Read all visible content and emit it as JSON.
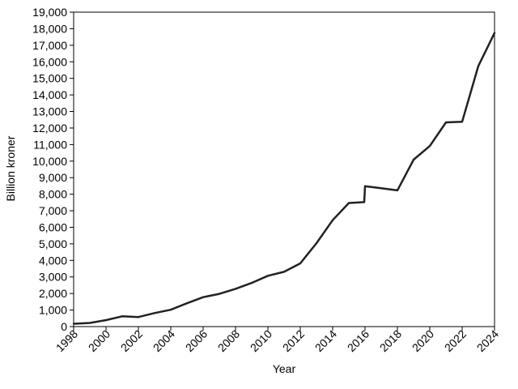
{
  "chart_data": {
    "type": "line",
    "title": "",
    "xlabel": "Year",
    "ylabel": "Billion kroner",
    "xlim": [
      1998,
      2024
    ],
    "ylim": [
      0,
      19000
    ],
    "grid": false,
    "x_ticks": [
      1998,
      2000,
      2002,
      2004,
      2006,
      2008,
      2010,
      2012,
      2014,
      2016,
      2018,
      2020,
      2022,
      2024
    ],
    "x_tick_labels": [
      "1998",
      "2000",
      "2002",
      "2004",
      "2006",
      "2008",
      "2010",
      "2012",
      "2014",
      "2016",
      "2018",
      "2020",
      "2022",
      "2024"
    ],
    "y_ticks": [
      0,
      1000,
      2000,
      3000,
      4000,
      5000,
      6000,
      7000,
      8000,
      9000,
      10000,
      11000,
      12000,
      13000,
      14000,
      15000,
      16000,
      17000,
      18000,
      19000
    ],
    "y_tick_labels": [
      "0",
      "1,000",
      "2,000",
      "3,000",
      "4,000",
      "5,000",
      "6,000",
      "7,000",
      "8,000",
      "9,000",
      "10,000",
      "11,000",
      "12,000",
      "13,000",
      "14,000",
      "15,000",
      "16,000",
      "17,000",
      "18,000",
      "19,000"
    ],
    "series": [
      {
        "color": "#222222",
        "points": [
          [
            1998,
            170
          ],
          [
            1999,
            220
          ],
          [
            2000,
            390
          ],
          [
            2001,
            620
          ],
          [
            2002,
            580
          ],
          [
            2003,
            820
          ],
          [
            2004,
            1020
          ],
          [
            2005,
            1410
          ],
          [
            2006,
            1780
          ],
          [
            2007,
            1980
          ],
          [
            2008,
            2280
          ],
          [
            2009,
            2640
          ],
          [
            2010,
            3070
          ],
          [
            2011,
            3310
          ],
          [
            2012,
            3820
          ],
          [
            2013,
            5040
          ],
          [
            2014,
            6430
          ],
          [
            2015,
            7470
          ],
          [
            2015.95,
            7520
          ],
          [
            2016,
            8480
          ],
          [
            2017,
            8360
          ],
          [
            2018,
            8230
          ],
          [
            2019,
            10090
          ],
          [
            2020,
            10910
          ],
          [
            2021,
            12340
          ],
          [
            2022,
            12380
          ],
          [
            2023,
            15750
          ],
          [
            2024,
            17740
          ]
        ]
      }
    ]
  }
}
